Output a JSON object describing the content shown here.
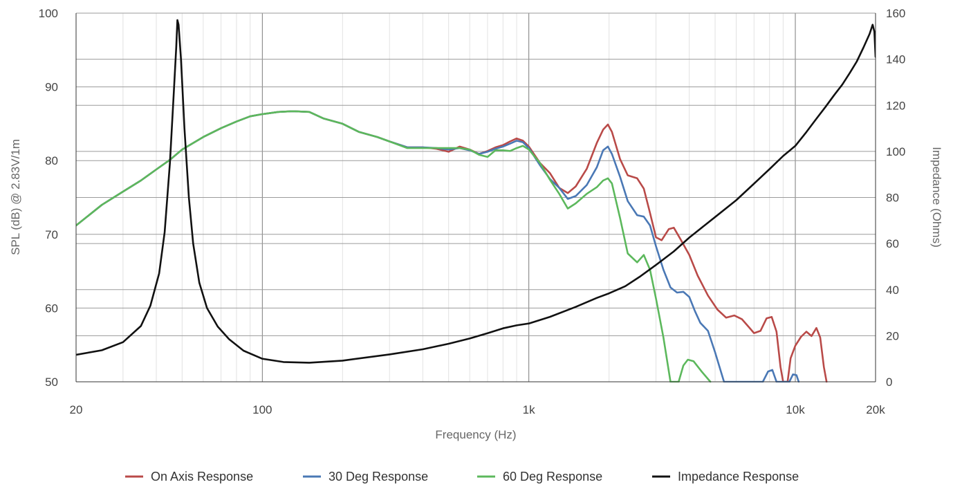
{
  "chart_data": {
    "type": "line",
    "xlabel": "Frequency (Hz)",
    "ylabel_left": "SPL (dB) @ 2.83V/1m",
    "ylabel_right": "Impedance (Ohms)",
    "x_scale": "log",
    "xlim": [
      20,
      20000
    ],
    "ylim_left": [
      50,
      100
    ],
    "ylim_right": [
      0,
      160
    ],
    "x_ticks": [
      {
        "value": 20,
        "label": "20"
      },
      {
        "value": 100,
        "label": "100"
      },
      {
        "value": 1000,
        "label": "1k"
      },
      {
        "value": 10000,
        "label": "10k"
      },
      {
        "value": 20000,
        "label": "20k"
      }
    ],
    "y_ticks_left": [
      {
        "value": 50,
        "label": "50"
      },
      {
        "value": 60,
        "label": "60"
      },
      {
        "value": 70,
        "label": "70"
      },
      {
        "value": 80,
        "label": "80"
      },
      {
        "value": 90,
        "label": "90"
      },
      {
        "value": 100,
        "label": "100"
      }
    ],
    "y_ticks_right": [
      {
        "value": 0,
        "label": "0"
      },
      {
        "value": 20,
        "label": "20"
      },
      {
        "value": 40,
        "label": "40"
      },
      {
        "value": 60,
        "label": "60"
      },
      {
        "value": 80,
        "label": "80"
      },
      {
        "value": 100,
        "label": "100"
      },
      {
        "value": 120,
        "label": "120"
      },
      {
        "value": 140,
        "label": "140"
      },
      {
        "value": 160,
        "label": "160"
      }
    ],
    "grid": true,
    "legend_position": "bottom",
    "series": [
      {
        "name": "On Axis Response",
        "axis": "left",
        "color": "#b94a48",
        "points": [
          [
            20,
            71.2
          ],
          [
            25,
            74
          ],
          [
            30,
            75.8
          ],
          [
            35,
            77.3
          ],
          [
            40,
            78.8
          ],
          [
            45,
            80.1
          ],
          [
            50,
            81.5
          ],
          [
            60,
            83.2
          ],
          [
            70,
            84.4
          ],
          [
            80,
            85.3
          ],
          [
            90,
            86
          ],
          [
            100,
            86.3
          ],
          [
            115,
            86.6
          ],
          [
            130,
            86.7
          ],
          [
            150,
            86.6
          ],
          [
            170,
            85.7
          ],
          [
            200,
            85
          ],
          [
            230,
            83.9
          ],
          [
            270,
            83.2
          ],
          [
            300,
            82.6
          ],
          [
            350,
            81.8
          ],
          [
            400,
            81.8
          ],
          [
            450,
            81.6
          ],
          [
            500,
            81.2
          ],
          [
            550,
            81.9
          ],
          [
            600,
            81.5
          ],
          [
            650,
            80.9
          ],
          [
            700,
            81.3
          ],
          [
            750,
            81.8
          ],
          [
            800,
            82.1
          ],
          [
            850,
            82.6
          ],
          [
            900,
            83
          ],
          [
            950,
            82.7
          ],
          [
            1000,
            81.9
          ],
          [
            1100,
            79.7
          ],
          [
            1200,
            78.3
          ],
          [
            1300,
            76.3
          ],
          [
            1400,
            75.6
          ],
          [
            1500,
            76.5
          ],
          [
            1650,
            78.9
          ],
          [
            1800,
            82.4
          ],
          [
            1900,
            84.2
          ],
          [
            1980,
            84.9
          ],
          [
            2050,
            83.9
          ],
          [
            2200,
            80.2
          ],
          [
            2350,
            78
          ],
          [
            2550,
            77.6
          ],
          [
            2700,
            76.2
          ],
          [
            2850,
            72.9
          ],
          [
            3000,
            69.6
          ],
          [
            3150,
            69.2
          ],
          [
            3350,
            70.7
          ],
          [
            3500,
            70.9
          ],
          [
            3700,
            69.4
          ],
          [
            4000,
            67.2
          ],
          [
            4300,
            64.4
          ],
          [
            4700,
            61.7
          ],
          [
            5100,
            59.8
          ],
          [
            5500,
            58.7
          ],
          [
            5900,
            59
          ],
          [
            6300,
            58.5
          ],
          [
            6700,
            57.4
          ],
          [
            7000,
            56.6
          ],
          [
            7400,
            56.9
          ],
          [
            7800,
            58.6
          ],
          [
            8150,
            58.8
          ],
          [
            8500,
            56.8
          ],
          [
            8800,
            52
          ],
          [
            9000,
            50
          ],
          [
            9350,
            50
          ],
          [
            9600,
            53.2
          ],
          [
            10000,
            54.9
          ],
          [
            10500,
            56.1
          ],
          [
            11000,
            56.8
          ],
          [
            11500,
            56.2
          ],
          [
            12000,
            57.3
          ],
          [
            12400,
            56
          ],
          [
            12800,
            52
          ],
          [
            13100,
            50
          ]
        ]
      },
      {
        "name": "30 Deg Response",
        "axis": "left",
        "color": "#4a78b5",
        "points": [
          [
            20,
            71.2
          ],
          [
            25,
            74
          ],
          [
            30,
            75.8
          ],
          [
            35,
            77.3
          ],
          [
            40,
            78.8
          ],
          [
            45,
            80.1
          ],
          [
            50,
            81.5
          ],
          [
            60,
            83.2
          ],
          [
            70,
            84.4
          ],
          [
            80,
            85.3
          ],
          [
            90,
            86
          ],
          [
            100,
            86.3
          ],
          [
            115,
            86.6
          ],
          [
            130,
            86.7
          ],
          [
            150,
            86.6
          ],
          [
            170,
            85.7
          ],
          [
            200,
            85
          ],
          [
            230,
            83.9
          ],
          [
            270,
            83.2
          ],
          [
            300,
            82.6
          ],
          [
            350,
            81.8
          ],
          [
            400,
            81.8
          ],
          [
            450,
            81.7
          ],
          [
            500,
            81.5
          ],
          [
            550,
            81.7
          ],
          [
            600,
            81.4
          ],
          [
            650,
            80.9
          ],
          [
            700,
            81.2
          ],
          [
            750,
            81.6
          ],
          [
            800,
            81.9
          ],
          [
            850,
            82.3
          ],
          [
            900,
            82.7
          ],
          [
            950,
            82.5
          ],
          [
            1000,
            81.7
          ],
          [
            1100,
            79.4
          ],
          [
            1200,
            77.5
          ],
          [
            1300,
            76.3
          ],
          [
            1400,
            74.8
          ],
          [
            1500,
            75.2
          ],
          [
            1650,
            76.7
          ],
          [
            1800,
            79.1
          ],
          [
            1900,
            81.4
          ],
          [
            1980,
            81.9
          ],
          [
            2050,
            80.9
          ],
          [
            2200,
            77.8
          ],
          [
            2350,
            74.5
          ],
          [
            2550,
            72.6
          ],
          [
            2700,
            72.4
          ],
          [
            2850,
            71.2
          ],
          [
            3000,
            68.4
          ],
          [
            3200,
            65.2
          ],
          [
            3400,
            62.8
          ],
          [
            3600,
            62.1
          ],
          [
            3800,
            62.2
          ],
          [
            4000,
            61.5
          ],
          [
            4200,
            59.6
          ],
          [
            4400,
            58
          ],
          [
            4700,
            56.9
          ],
          [
            5000,
            54
          ],
          [
            5400,
            50
          ],
          [
            7550,
            50
          ],
          [
            7900,
            51.4
          ],
          [
            8200,
            51.6
          ],
          [
            8500,
            50
          ],
          [
            9500,
            50
          ],
          [
            9800,
            51
          ],
          [
            10100,
            50.9
          ],
          [
            10300,
            50
          ]
        ]
      },
      {
        "name": "60 Deg Response",
        "axis": "left",
        "color": "#5cb85c",
        "points": [
          [
            20,
            71.2
          ],
          [
            25,
            74
          ],
          [
            30,
            75.8
          ],
          [
            35,
            77.3
          ],
          [
            40,
            78.8
          ],
          [
            45,
            80.1
          ],
          [
            50,
            81.5
          ],
          [
            60,
            83.2
          ],
          [
            70,
            84.4
          ],
          [
            80,
            85.3
          ],
          [
            90,
            86
          ],
          [
            100,
            86.3
          ],
          [
            115,
            86.6
          ],
          [
            130,
            86.7
          ],
          [
            150,
            86.6
          ],
          [
            170,
            85.7
          ],
          [
            200,
            85
          ],
          [
            230,
            83.9
          ],
          [
            270,
            83.2
          ],
          [
            300,
            82.6
          ],
          [
            350,
            81.7
          ],
          [
            400,
            81.7
          ],
          [
            450,
            81.7
          ],
          [
            500,
            81.7
          ],
          [
            550,
            81.7
          ],
          [
            600,
            81.5
          ],
          [
            650,
            80.8
          ],
          [
            700,
            80.5
          ],
          [
            750,
            81.4
          ],
          [
            800,
            81.4
          ],
          [
            850,
            81.3
          ],
          [
            900,
            81.7
          ],
          [
            950,
            82
          ],
          [
            1000,
            81.5
          ],
          [
            1100,
            79.7
          ],
          [
            1200,
            77.4
          ],
          [
            1300,
            75.5
          ],
          [
            1400,
            73.5
          ],
          [
            1500,
            74.2
          ],
          [
            1650,
            75.5
          ],
          [
            1800,
            76.4
          ],
          [
            1900,
            77.3
          ],
          [
            1980,
            77.6
          ],
          [
            2050,
            76.9
          ],
          [
            2200,
            72.2
          ],
          [
            2350,
            67.4
          ],
          [
            2550,
            66.2
          ],
          [
            2700,
            67.2
          ],
          [
            2850,
            65.2
          ],
          [
            3000,
            61.3
          ],
          [
            3200,
            56
          ],
          [
            3400,
            50
          ],
          [
            3650,
            50
          ],
          [
            3800,
            52.2
          ],
          [
            3950,
            53
          ],
          [
            4150,
            52.8
          ],
          [
            4450,
            51.4
          ],
          [
            4800,
            50
          ]
        ]
      },
      {
        "name": "Impedance Response",
        "axis": "right",
        "color": "#111111",
        "points": [
          [
            20,
            11.7
          ],
          [
            25,
            13.7
          ],
          [
            30,
            17.2
          ],
          [
            35,
            24.2
          ],
          [
            38,
            33
          ],
          [
            41,
            47
          ],
          [
            43,
            65
          ],
          [
            45,
            95
          ],
          [
            46.5,
            125
          ],
          [
            47.5,
            145
          ],
          [
            48,
            157
          ],
          [
            48.5,
            155
          ],
          [
            49.5,
            140
          ],
          [
            51,
            110
          ],
          [
            53,
            80
          ],
          [
            55,
            60
          ],
          [
            58,
            43
          ],
          [
            62,
            32
          ],
          [
            68,
            24
          ],
          [
            75,
            18.5
          ],
          [
            85,
            13.5
          ],
          [
            100,
            10
          ],
          [
            120,
            8.6
          ],
          [
            150,
            8.3
          ],
          [
            200,
            9.2
          ],
          [
            300,
            11.9
          ],
          [
            400,
            14.1
          ],
          [
            500,
            16.5
          ],
          [
            600,
            18.8
          ],
          [
            700,
            21.1
          ],
          [
            800,
            23.2
          ],
          [
            900,
            24.5
          ],
          [
            1000,
            25.3
          ],
          [
            1200,
            28.2
          ],
          [
            1500,
            32.5
          ],
          [
            1800,
            36.4
          ],
          [
            2000,
            38.4
          ],
          [
            2300,
            41.5
          ],
          [
            2600,
            45.5
          ],
          [
            3000,
            50.7
          ],
          [
            3500,
            56.6
          ],
          [
            4000,
            62.6
          ],
          [
            5000,
            71.5
          ],
          [
            6000,
            78.8
          ],
          [
            7000,
            86
          ],
          [
            8000,
            92.3
          ],
          [
            9000,
            98
          ],
          [
            10000,
            102.4
          ],
          [
            11000,
            108.4
          ],
          [
            12000,
            114.2
          ],
          [
            13000,
            119.4
          ],
          [
            14000,
            124.5
          ],
          [
            15000,
            129
          ],
          [
            16000,
            134
          ],
          [
            17000,
            139
          ],
          [
            18000,
            145
          ],
          [
            19000,
            151
          ],
          [
            19500,
            155
          ],
          [
            19800,
            152
          ],
          [
            20000,
            141
          ]
        ]
      }
    ]
  }
}
